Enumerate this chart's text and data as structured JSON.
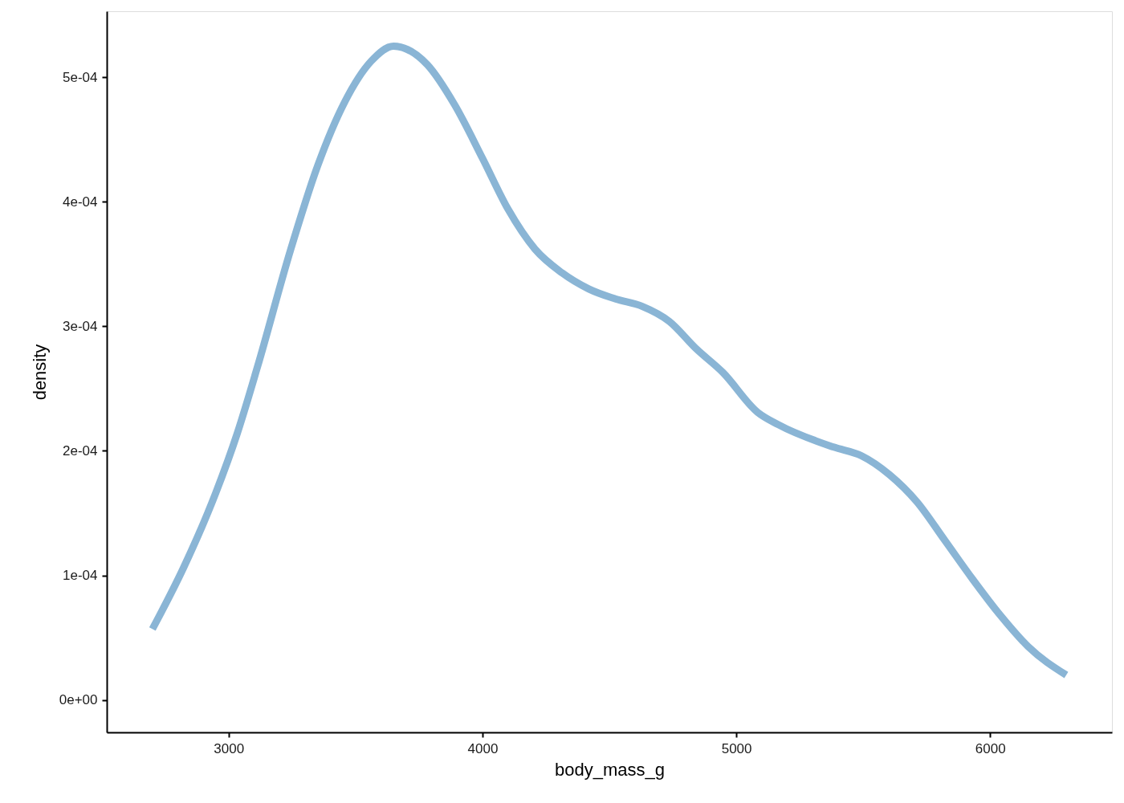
{
  "chart_data": {
    "type": "line",
    "xlabel": "body_mass_g",
    "ylabel": "density",
    "x": [
      2700,
      2822,
      2949,
      3034,
      3113,
      3245,
      3351,
      3457,
      3562,
      3650,
      3783,
      3890,
      4000,
      4101,
      4207,
      4313,
      4419,
      4524,
      4630,
      4736,
      4842,
      4947,
      5084,
      5166,
      5384,
      5494,
      5603,
      5712,
      5822,
      5931,
      6040,
      6149,
      6300
    ],
    "series": [
      {
        "color": "#8ab5d5",
        "values": [
          5.7e-05,
          0.000106,
          0.000166,
          0.000214,
          0.000267,
          0.000362,
          0.000429,
          0.00048,
          0.000513,
          0.000525,
          0.00051,
          0.000478,
          0.000435,
          0.000394,
          0.000362,
          0.000343,
          0.00033,
          0.000322,
          0.000316,
          0.000304,
          0.000282,
          0.000263,
          0.000231,
          0.000221,
          0.000203,
          0.000196,
          0.000181,
          0.000159,
          0.000128,
          9.7e-05,
          6.8e-05,
          4.3e-05,
          2e-05
        ]
      }
    ],
    "xlim": [
      2520,
      6480
    ],
    "xticks": [
      3000,
      4000,
      5000,
      6000
    ],
    "ylim": [
      -2.6e-05,
      0.000553
    ],
    "yticks": [
      {
        "value": 0,
        "label": "0e+00"
      },
      {
        "value": 0.0001,
        "label": "1e-04"
      },
      {
        "value": 0.0002,
        "label": "2e-04"
      },
      {
        "value": 0.0003,
        "label": "3e-04"
      },
      {
        "value": 0.0004,
        "label": "4e-04"
      },
      {
        "value": 0.0005,
        "label": "5e-04"
      }
    ],
    "line_style": "solid"
  }
}
